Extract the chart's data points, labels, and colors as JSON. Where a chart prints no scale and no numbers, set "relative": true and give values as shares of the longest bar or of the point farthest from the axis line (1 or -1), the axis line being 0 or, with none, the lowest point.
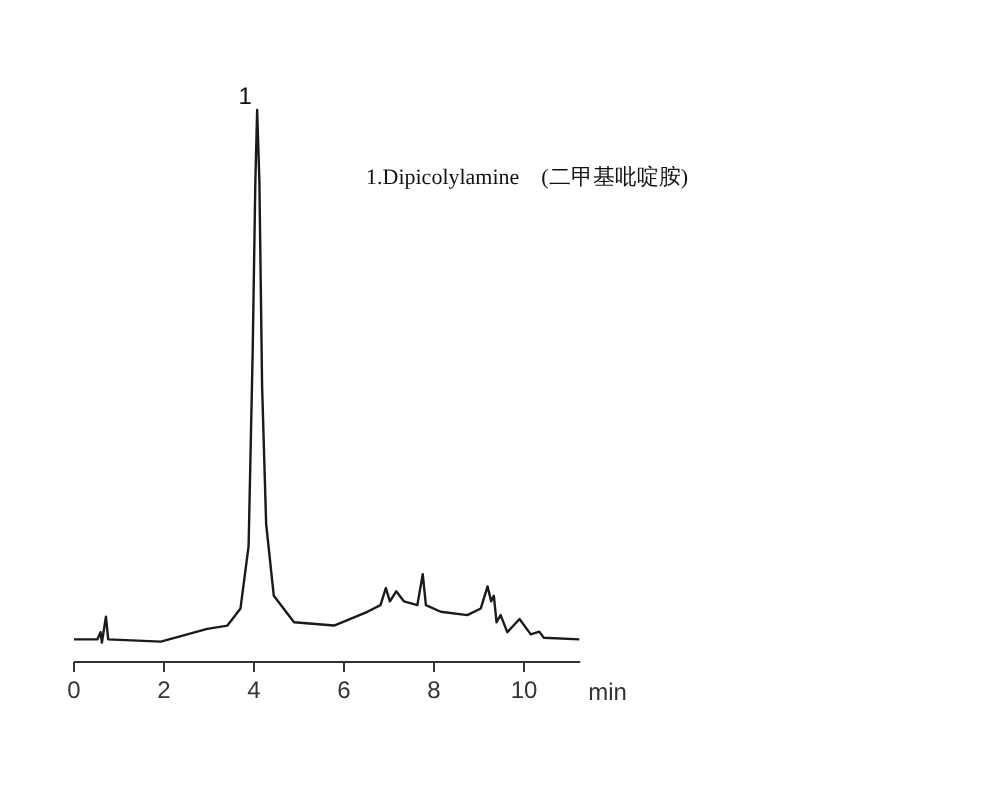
{
  "chart_data": {
    "type": "line",
    "relative": true,
    "xlabel": "min",
    "xlim": [
      0,
      11.25
    ],
    "xticks": [
      0,
      2,
      4,
      6,
      8,
      10
    ],
    "grid": false,
    "marker": "none",
    "line_style": "solid",
    "annotations": [
      {
        "text": "1",
        "x": 4.07,
        "y": 1
      },
      "1.Dipicolylamine    (二甲基吡啶胺)"
    ],
    "series": [
      {
        "color": "#1a1a1a",
        "x": [
          0,
          0.52,
          0.59,
          0.62,
          0.71,
          0.76,
          1.93,
          2.96,
          3.41,
          3.7,
          3.88,
          3.97,
          4.03,
          4.07,
          4.12,
          4.18,
          4.27,
          4.44,
          4.89,
          5.78,
          6.52,
          6.81,
          6.93,
          7.02,
          7.16,
          7.33,
          7.63,
          7.75,
          7.82,
          8.15,
          8.74,
          9.04,
          9.19,
          9.27,
          9.33,
          9.39,
          9.48,
          9.63,
          9.9,
          10.15,
          10.34,
          10.44,
          11.23
        ],
        "values": [
          0.041,
          0.041,
          0.054,
          0.035,
          0.082,
          0.041,
          0.037,
          0.06,
          0.066,
          0.097,
          0.21,
          0.56,
          0.87,
          1,
          0.87,
          0.5,
          0.25,
          0.12,
          0.072,
          0.066,
          0.091,
          0.103,
          0.134,
          0.11,
          0.128,
          0.11,
          0.103,
          0.159,
          0.103,
          0.091,
          0.085,
          0.097,
          0.137,
          0.11,
          0.12,
          0.072,
          0.085,
          0.054,
          0.078,
          0.05,
          0.055,
          0.044,
          0.041
        ]
      }
    ]
  }
}
